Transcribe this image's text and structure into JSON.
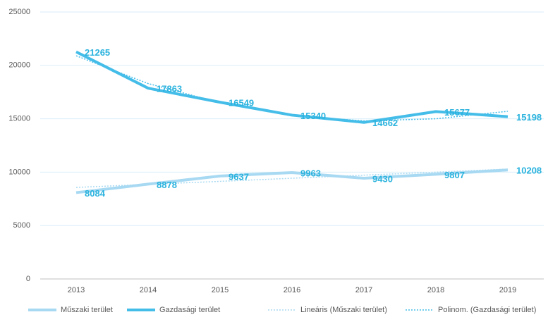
{
  "chart_data": {
    "type": "line",
    "categories": [
      "2013",
      "2014",
      "2015",
      "2016",
      "2017",
      "2018",
      "2019"
    ],
    "series": [
      {
        "name": "Műszaki terület",
        "color": "#a8d9f2",
        "style": "solid",
        "width": 4,
        "values": [
          8084,
          8878,
          9637,
          9963,
          9430,
          9807,
          10208
        ],
        "labels": true
      },
      {
        "name": "Gazdasági terület",
        "color": "#45bde9",
        "style": "solid",
        "width": 4,
        "values": [
          21265,
          17863,
          16549,
          15340,
          14662,
          15677,
          15198
        ],
        "labels": true
      },
      {
        "name": "Lineáris (Műszaki terület)",
        "color": "#a8d9f2",
        "style": "dotted",
        "width": 1.5,
        "values": [
          8570,
          8860,
          9140,
          9430,
          9720,
          10000,
          10290
        ],
        "labels": false
      },
      {
        "name": "Polinom. (Gazdasági terület)",
        "color": "#45bde9",
        "style": "dotted",
        "width": 1.5,
        "values": [
          20900,
          18300,
          16500,
          15300,
          14800,
          15000,
          15700
        ],
        "labels": false
      }
    ],
    "ylim": [
      0,
      25000
    ],
    "yticks": [
      0,
      5000,
      10000,
      15000,
      20000,
      25000
    ],
    "grid": true,
    "legend": "bottom"
  }
}
